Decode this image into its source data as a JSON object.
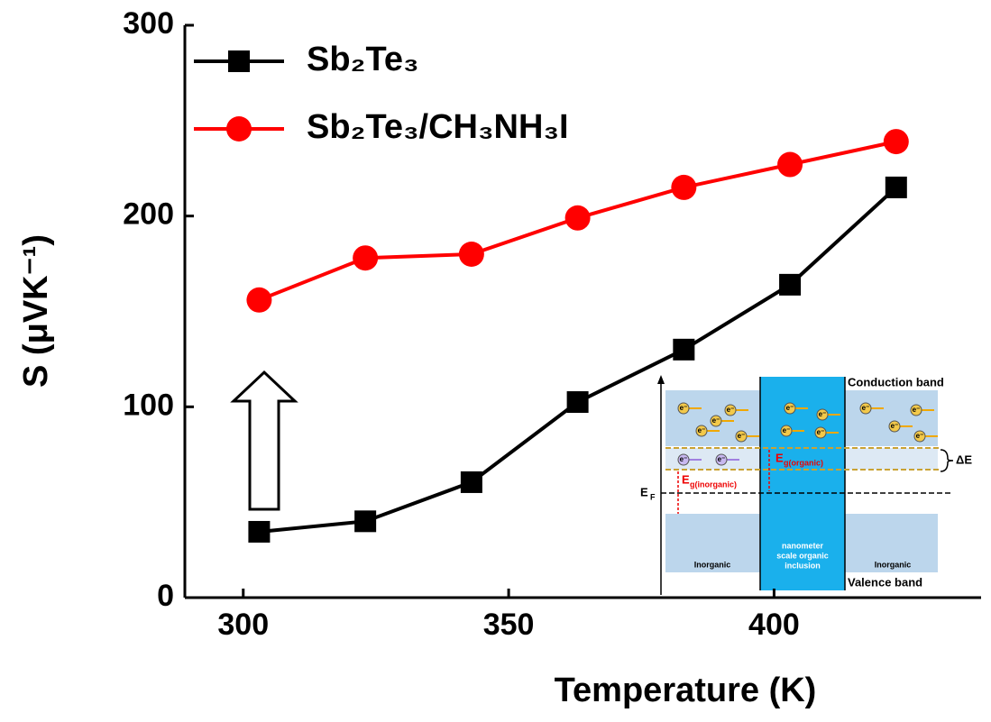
{
  "chart_data": {
    "type": "line",
    "xlabel": "Temperature (K)",
    "ylabel": "S (μVK⁻¹)",
    "x": [
      303,
      323,
      343,
      363,
      383,
      403,
      423
    ],
    "series": [
      {
        "name": "Sb₂Te₃",
        "color": "#000000",
        "marker": "square",
        "values": [
          34.5,
          40,
          60.5,
          102.5,
          130,
          164,
          215
        ]
      },
      {
        "name": "Sb₂Te₃/CH₃NH₃I",
        "color": "#ff0000",
        "marker": "circle",
        "values": [
          156,
          178,
          180,
          199,
          215,
          227,
          239
        ]
      }
    ],
    "xlim": [
      289,
      439
    ],
    "xticks": [
      300,
      350,
      400
    ],
    "ylim": [
      0,
      300
    ],
    "yticks": [
      0,
      100,
      200,
      300
    ],
    "legend": "upper left",
    "inset": {
      "conduction": "Conduction band",
      "delta": "ΔE",
      "fermi": "E",
      "fermi_sub": "F",
      "eg_org": "E",
      "eg_org_sub": "g(organic)",
      "eg_inorg": "E",
      "eg_inorg_sub": "g(inorganic)",
      "electron": "e⁻",
      "left": "Inorganic",
      "middle": [
        "nanometer",
        "scale organic",
        "inclusion"
      ],
      "right": "Inorganic",
      "valence": "Valence band"
    }
  }
}
